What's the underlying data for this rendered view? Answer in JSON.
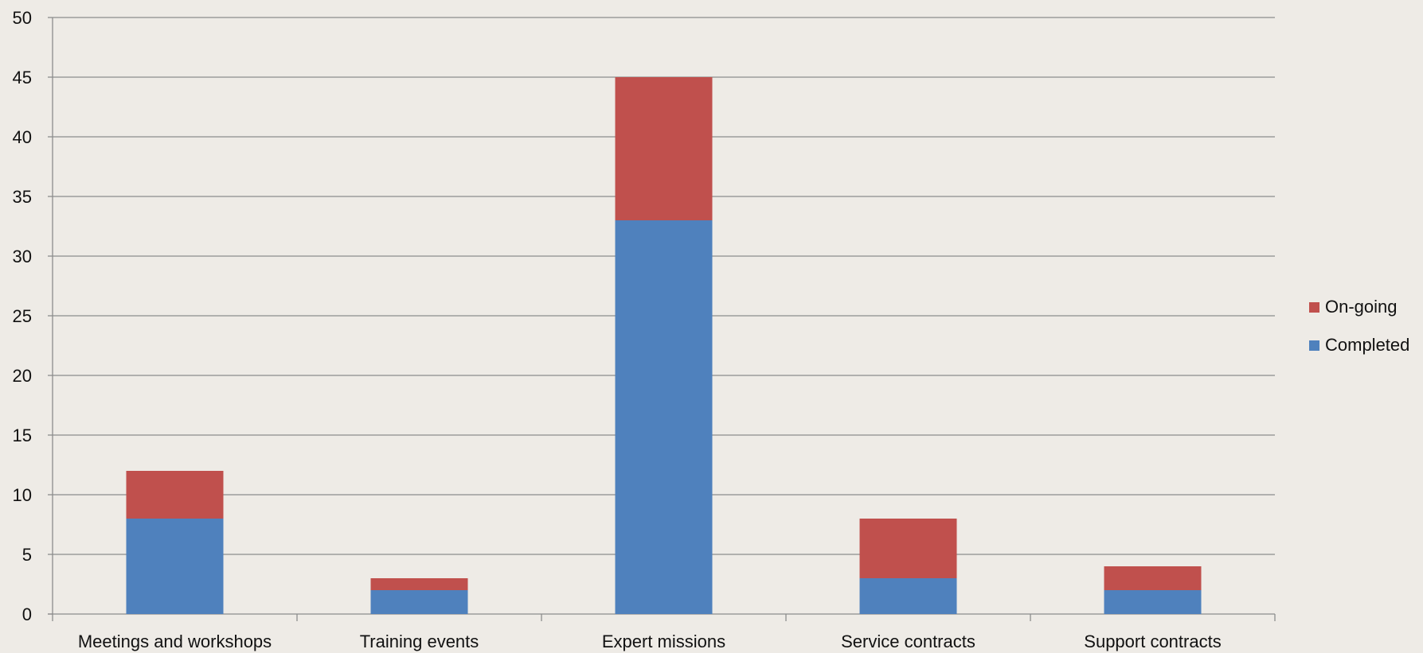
{
  "chart_data": {
    "type": "bar",
    "stacked": true,
    "categories": [
      "Meetings and workshops",
      "Training events",
      "Expert missions",
      "Service contracts",
      "Support contracts"
    ],
    "series": [
      {
        "name": "Completed",
        "color": "#4f81bd",
        "values": [
          8,
          2,
          33,
          3,
          2
        ]
      },
      {
        "name": "On-going",
        "color": "#c0504d",
        "values": [
          4,
          1,
          12,
          5,
          2
        ]
      }
    ],
    "ylim": [
      0,
      50
    ],
    "yticks": [
      0,
      5,
      10,
      15,
      20,
      25,
      30,
      35,
      40,
      45,
      50
    ],
    "grid": true,
    "legend_position": "right",
    "legend_order": [
      "On-going",
      "Completed"
    ]
  }
}
